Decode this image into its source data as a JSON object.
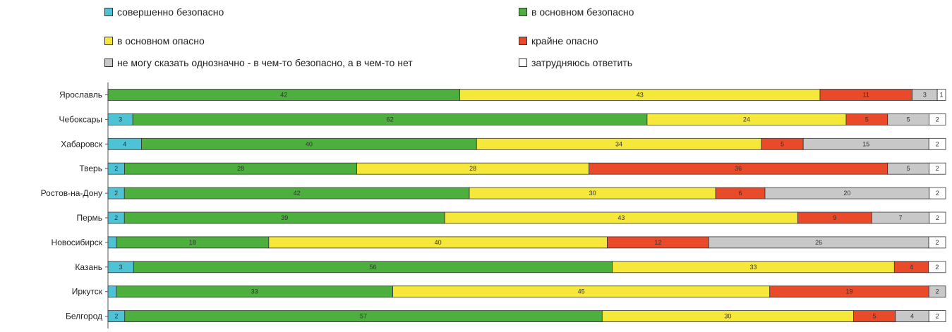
{
  "chart_data": {
    "type": "bar",
    "orientation": "horizontal",
    "stacked": "100%",
    "legend_position": "top",
    "categories": [
      "Ярославль",
      "Чебоксары",
      "Хабаровск",
      "Тверь",
      "Ростов-на-Дону",
      "Пермь",
      "Новосибирск",
      "Казань",
      "Иркутск",
      "Белгород"
    ],
    "series": [
      {
        "name": "совершенно безопасно",
        "color": "#4fc3d6",
        "values": [
          0,
          3,
          4,
          2,
          2,
          2,
          1,
          3,
          1,
          2
        ]
      },
      {
        "name": "в основном безопасно",
        "color": "#4caf3e",
        "values": [
          42,
          62,
          40,
          28,
          42,
          39,
          18,
          56,
          33,
          57
        ]
      },
      {
        "name": "в основном опасно",
        "color": "#f6e83a",
        "values": [
          43,
          24,
          34,
          28,
          30,
          43,
          40,
          33,
          45,
          30
        ]
      },
      {
        "name": "крайне опасно",
        "color": "#e84a2a",
        "values": [
          11,
          5,
          5,
          36,
          6,
          9,
          12,
          4,
          19,
          5
        ]
      },
      {
        "name": "не могу сказать однозначно - в чем-то безопасно, а в чем-то нет",
        "color": "#c8c8c8",
        "values": [
          3,
          5,
          15,
          5,
          20,
          7,
          26,
          0,
          2,
          4
        ]
      },
      {
        "name": "затрудняюсь ответить",
        "color": "#ffffff",
        "values": [
          1,
          2,
          2,
          2,
          2,
          2,
          2,
          2,
          0,
          2
        ]
      }
    ],
    "data_labels": [
      [
        "",
        "42",
        "43",
        "11",
        "3",
        "1"
      ],
      [
        "3",
        "62",
        "24",
        "5",
        "5",
        "2"
      ],
      [
        "4",
        "40",
        "34",
        "5",
        "15",
        "2"
      ],
      [
        "2",
        "28",
        "28",
        "36",
        "5",
        "2"
      ],
      [
        "2",
        "42",
        "30",
        "6",
        "20",
        "2"
      ],
      [
        "2",
        "39",
        "43",
        "9",
        "7",
        "2"
      ],
      [
        "",
        "18",
        "40",
        "12",
        "26",
        "2"
      ],
      [
        "3",
        "56",
        "33",
        "4",
        "",
        "2"
      ],
      [
        "",
        "33",
        "45",
        "19",
        "2",
        ""
      ],
      [
        "2",
        "57",
        "30",
        "5",
        "4",
        "2"
      ]
    ]
  }
}
